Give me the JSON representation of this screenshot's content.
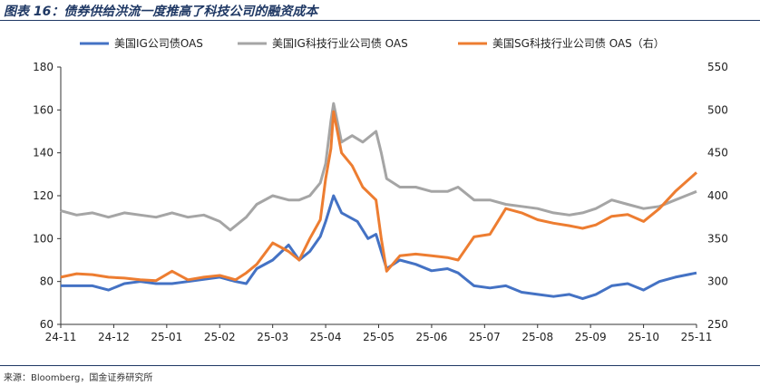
{
  "title": "图表 16：债券供给洪流一度推高了科技公司的融资成本",
  "source": "来源：Bloomberg，国金证券研究所",
  "chart_data": {
    "type": "line",
    "x_tick_labels": [
      "24-11",
      "24-12",
      "25-01",
      "25-02",
      "25-03",
      "25-04",
      "25-05",
      "25-06",
      "25-07",
      "25-08",
      "25-09",
      "25-10",
      "25-11"
    ],
    "y_left": {
      "min": 60,
      "max": 180,
      "step": 20
    },
    "y_right": {
      "min": 250,
      "max": 550,
      "step": 50
    },
    "legend_position": "top",
    "grid": false,
    "series": [
      {
        "name": "美国IG公司债OAS",
        "axis": "left",
        "color": "#4472c4",
        "values": [
          [
            0.0,
            78
          ],
          [
            0.3,
            78
          ],
          [
            0.6,
            78
          ],
          [
            0.9,
            76
          ],
          [
            1.2,
            79
          ],
          [
            1.5,
            80
          ],
          [
            1.8,
            79
          ],
          [
            2.1,
            79
          ],
          [
            2.4,
            80
          ],
          [
            2.7,
            81
          ],
          [
            3.0,
            82
          ],
          [
            3.3,
            80
          ],
          [
            3.5,
            79
          ],
          [
            3.7,
            86
          ],
          [
            4.0,
            90
          ],
          [
            4.3,
            97
          ],
          [
            4.5,
            90
          ],
          [
            4.7,
            94
          ],
          [
            4.9,
            101
          ],
          [
            5.0,
            108
          ],
          [
            5.1,
            116
          ],
          [
            5.15,
            120
          ],
          [
            5.3,
            112
          ],
          [
            5.6,
            108
          ],
          [
            5.8,
            100
          ],
          [
            5.95,
            102
          ],
          [
            6.05,
            94
          ],
          [
            6.15,
            86
          ],
          [
            6.4,
            90
          ],
          [
            6.7,
            88
          ],
          [
            7.0,
            85
          ],
          [
            7.3,
            86
          ],
          [
            7.5,
            84
          ],
          [
            7.8,
            78
          ],
          [
            8.1,
            77
          ],
          [
            8.4,
            78
          ],
          [
            8.7,
            75
          ],
          [
            9.0,
            74
          ],
          [
            9.3,
            73
          ],
          [
            9.6,
            74
          ],
          [
            9.85,
            72
          ],
          [
            10.1,
            74
          ],
          [
            10.4,
            78
          ],
          [
            10.7,
            79
          ],
          [
            11.0,
            76
          ],
          [
            11.3,
            80
          ],
          [
            11.6,
            82
          ],
          [
            12.0,
            84
          ]
        ]
      },
      {
        "name": "美国IG科技行业公司债 OAS",
        "axis": "left",
        "color": "#a5a5a5",
        "values": [
          [
            0.0,
            113
          ],
          [
            0.3,
            111
          ],
          [
            0.6,
            112
          ],
          [
            0.9,
            110
          ],
          [
            1.2,
            112
          ],
          [
            1.5,
            111
          ],
          [
            1.8,
            110
          ],
          [
            2.1,
            112
          ],
          [
            2.4,
            110
          ],
          [
            2.7,
            111
          ],
          [
            3.0,
            108
          ],
          [
            3.2,
            104
          ],
          [
            3.5,
            110
          ],
          [
            3.7,
            116
          ],
          [
            4.0,
            120
          ],
          [
            4.3,
            118
          ],
          [
            4.5,
            118
          ],
          [
            4.7,
            120
          ],
          [
            4.9,
            126
          ],
          [
            5.0,
            135
          ],
          [
            5.1,
            155
          ],
          [
            5.15,
            163
          ],
          [
            5.3,
            145
          ],
          [
            5.5,
            148
          ],
          [
            5.7,
            145
          ],
          [
            5.95,
            150
          ],
          [
            6.05,
            140
          ],
          [
            6.15,
            128
          ],
          [
            6.4,
            124
          ],
          [
            6.7,
            124
          ],
          [
            7.0,
            122
          ],
          [
            7.3,
            122
          ],
          [
            7.5,
            124
          ],
          [
            7.8,
            118
          ],
          [
            8.1,
            118
          ],
          [
            8.4,
            116
          ],
          [
            8.7,
            115
          ],
          [
            9.0,
            114
          ],
          [
            9.3,
            112
          ],
          [
            9.6,
            111
          ],
          [
            9.85,
            112
          ],
          [
            10.1,
            114
          ],
          [
            10.4,
            118
          ],
          [
            10.7,
            116
          ],
          [
            11.0,
            114
          ],
          [
            11.3,
            115
          ],
          [
            11.6,
            118
          ],
          [
            12.0,
            122
          ]
        ]
      },
      {
        "name": "美国SG科技行业公司债 OAS（右）",
        "axis": "right",
        "color": "#ed7d31",
        "values": [
          [
            0.0,
            305
          ],
          [
            0.3,
            309
          ],
          [
            0.6,
            308
          ],
          [
            0.9,
            305
          ],
          [
            1.2,
            304
          ],
          [
            1.5,
            302
          ],
          [
            1.8,
            301
          ],
          [
            2.1,
            312
          ],
          [
            2.4,
            302
          ],
          [
            2.7,
            305
          ],
          [
            3.0,
            307
          ],
          [
            3.3,
            302
          ],
          [
            3.5,
            310
          ],
          [
            3.7,
            320
          ],
          [
            4.0,
            345
          ],
          [
            4.3,
            335
          ],
          [
            4.5,
            325
          ],
          [
            4.7,
            350
          ],
          [
            4.9,
            372
          ],
          [
            5.0,
            420
          ],
          [
            5.1,
            455
          ],
          [
            5.15,
            498
          ],
          [
            5.3,
            450
          ],
          [
            5.5,
            435
          ],
          [
            5.7,
            410
          ],
          [
            5.95,
            395
          ],
          [
            6.05,
            350
          ],
          [
            6.15,
            312
          ],
          [
            6.4,
            330
          ],
          [
            6.7,
            332
          ],
          [
            7.0,
            330
          ],
          [
            7.3,
            328
          ],
          [
            7.5,
            325
          ],
          [
            7.8,
            352
          ],
          [
            8.1,
            355
          ],
          [
            8.4,
            385
          ],
          [
            8.7,
            380
          ],
          [
            9.0,
            372
          ],
          [
            9.3,
            368
          ],
          [
            9.6,
            365
          ],
          [
            9.85,
            362
          ],
          [
            10.1,
            366
          ],
          [
            10.4,
            376
          ],
          [
            10.7,
            378
          ],
          [
            11.0,
            370
          ],
          [
            11.3,
            385
          ],
          [
            11.6,
            405
          ],
          [
            12.0,
            427
          ]
        ]
      }
    ]
  }
}
